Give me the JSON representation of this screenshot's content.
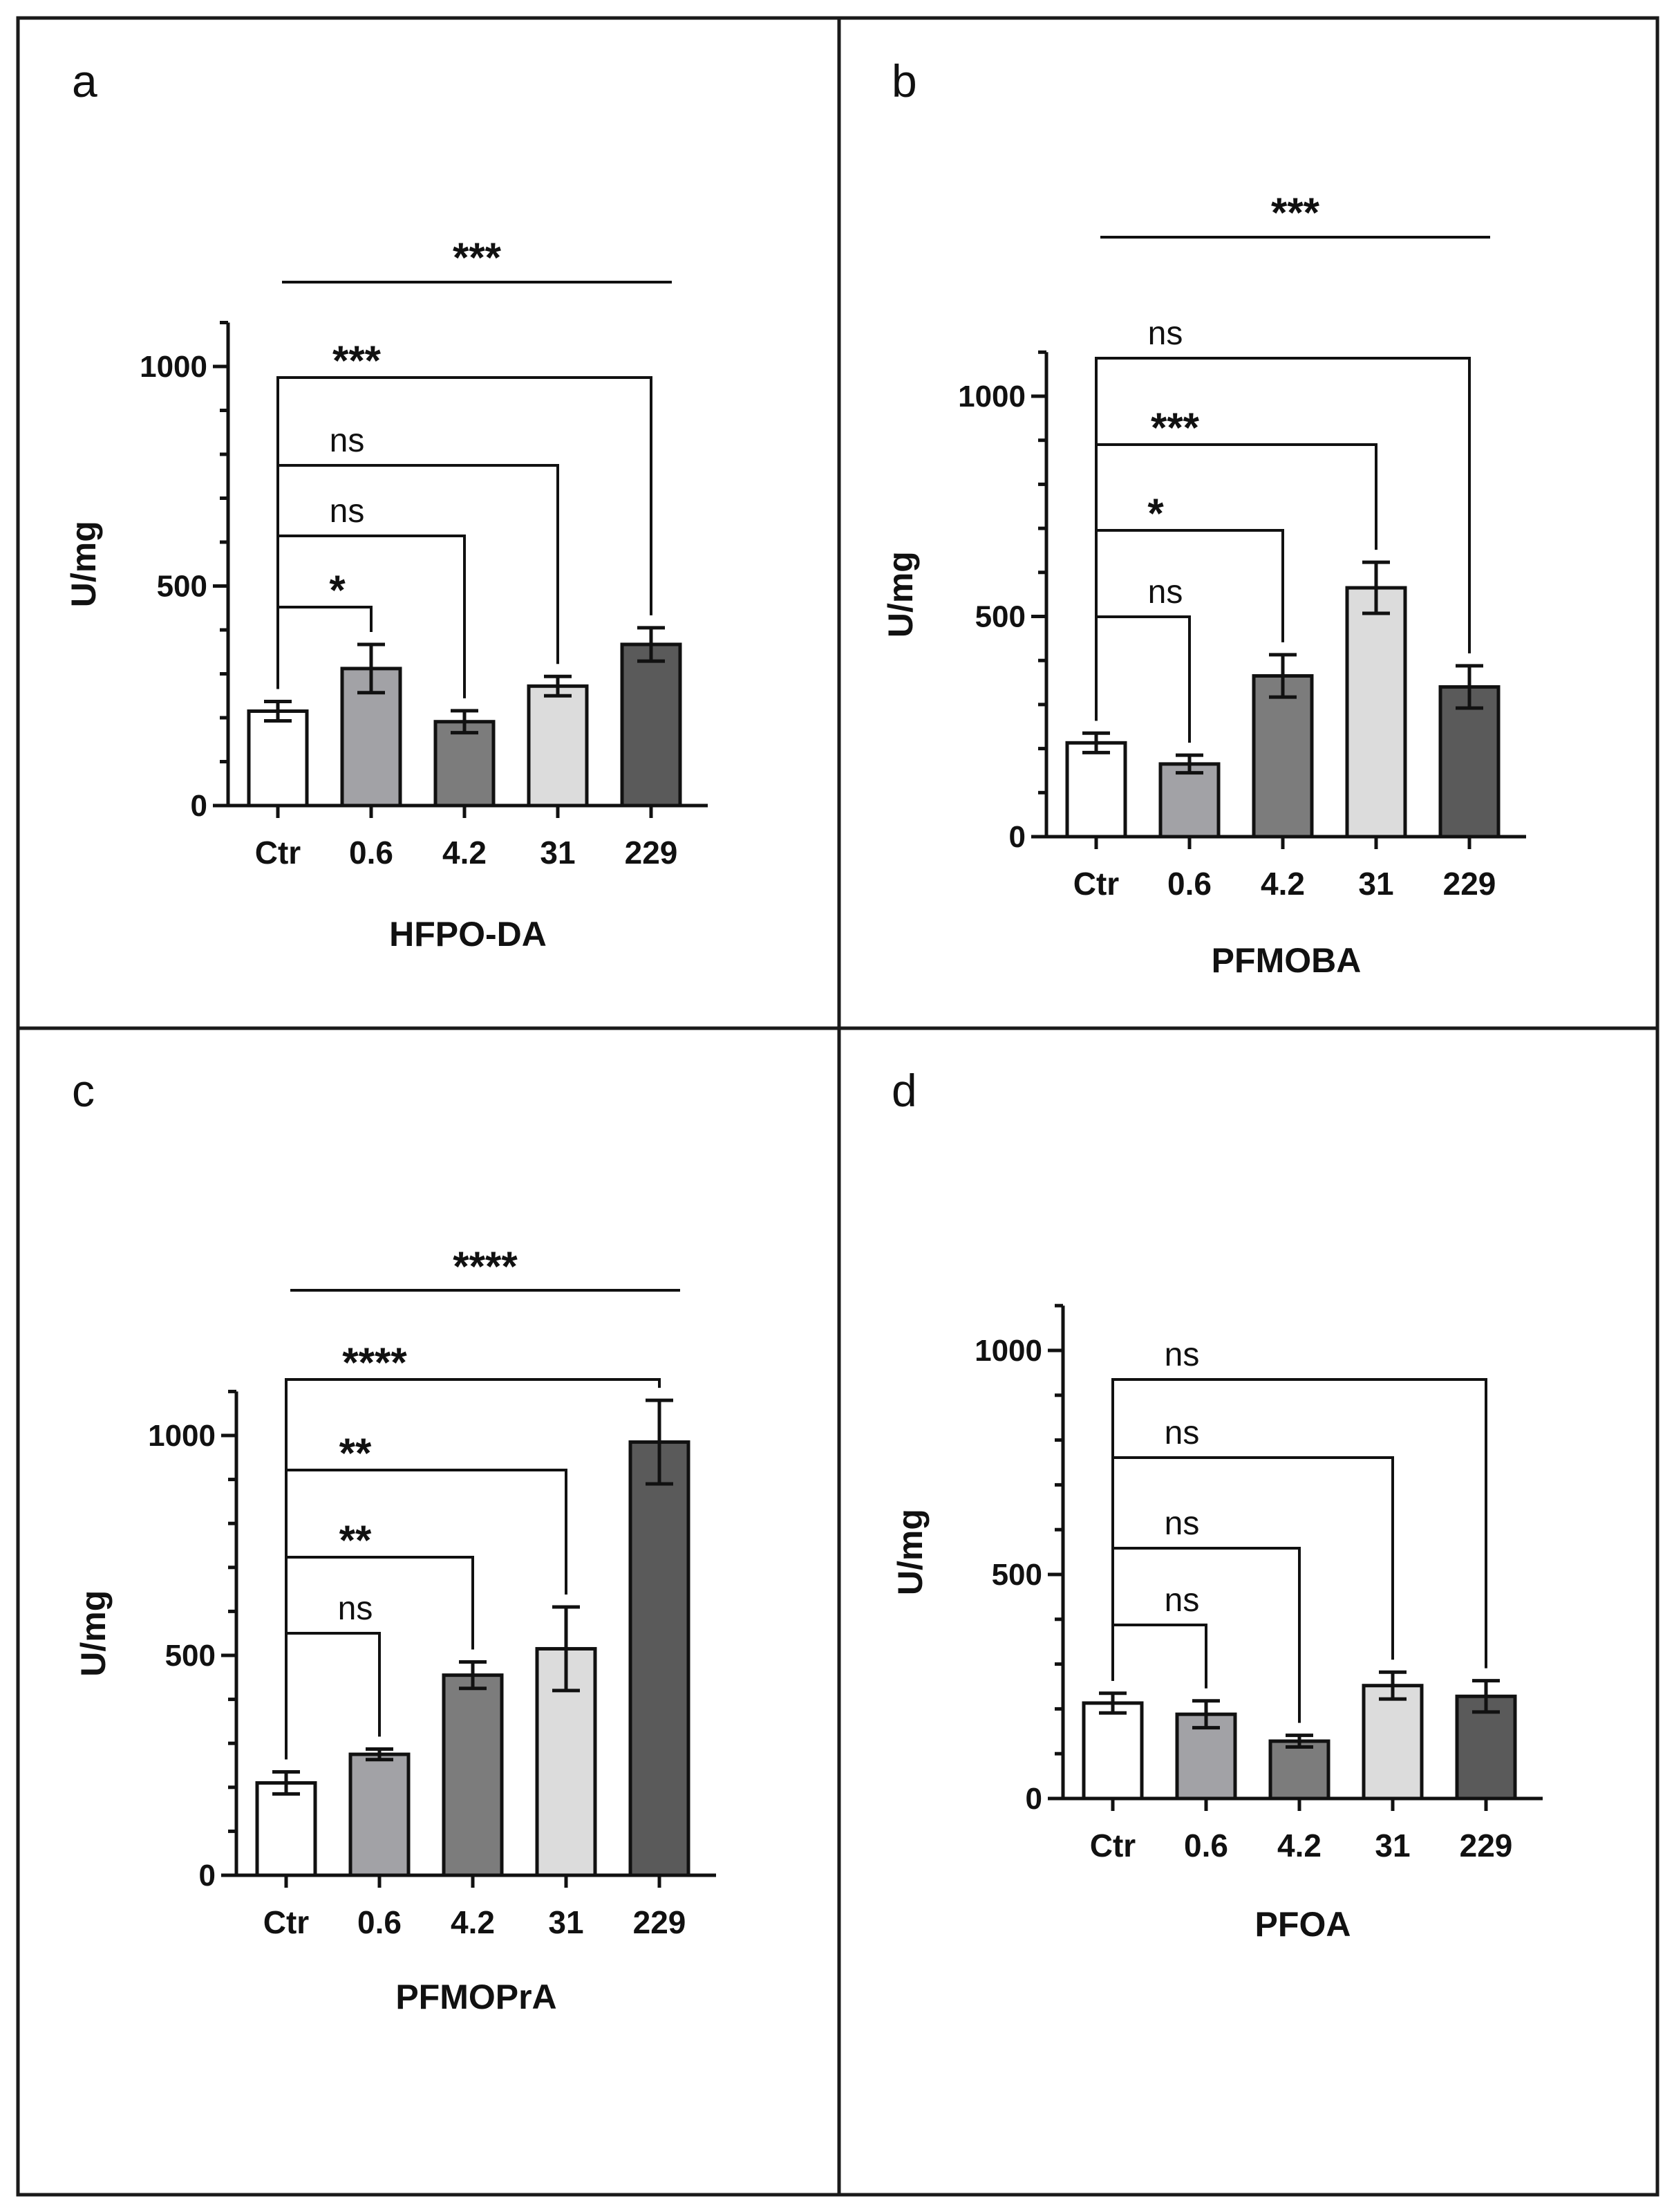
{
  "colors": {
    "Ctr": "#ffffff",
    "0.6": "#a2a2a6",
    "4.2": "#7c7c7c",
    "31": "#dcdcdc",
    "229": "#5a5a5a"
  },
  "chart_data": [
    {
      "panel": "a",
      "type": "bar",
      "categories": [
        "Ctr",
        "0.6",
        "4.2",
        "31",
        "229"
      ],
      "values": [
        215,
        312,
        191,
        272,
        367
      ],
      "errors": [
        22,
        55,
        25,
        22,
        38
      ],
      "xlabel": "HFPO-DA",
      "ylabel": "U/mg",
      "yticks": [
        0,
        500,
        1000
      ],
      "ylim": [
        0,
        1100
      ],
      "comparisons": [
        {
          "from": 0,
          "to": 1,
          "label": "*"
        },
        {
          "from": 0,
          "to": 2,
          "label": "ns"
        },
        {
          "from": 0,
          "to": 3,
          "label": "ns"
        },
        {
          "from": 0,
          "to": 4,
          "label": "***"
        }
      ],
      "trend": {
        "label": "***"
      }
    },
    {
      "panel": "b",
      "type": "bar",
      "categories": [
        "Ctr",
        "0.6",
        "4.2",
        "31",
        "229"
      ],
      "values": [
        213,
        165,
        365,
        565,
        340
      ],
      "errors": [
        22,
        20,
        48,
        58,
        48
      ],
      "xlabel": "PFMOBA",
      "ylabel": "U/mg",
      "yticks": [
        0,
        500,
        1000
      ],
      "ylim": [
        0,
        1100
      ],
      "comparisons": [
        {
          "from": 0,
          "to": 1,
          "label": "ns"
        },
        {
          "from": 0,
          "to": 2,
          "label": "*"
        },
        {
          "from": 0,
          "to": 3,
          "label": "***"
        },
        {
          "from": 0,
          "to": 4,
          "label": "ns"
        }
      ],
      "trend": {
        "label": "***"
      }
    },
    {
      "panel": "c",
      "type": "bar",
      "categories": [
        "Ctr",
        "0.6",
        "4.2",
        "31",
        "229"
      ],
      "values": [
        210,
        275,
        455,
        515,
        985
      ],
      "errors": [
        25,
        12,
        30,
        95,
        95
      ],
      "xlabel": "PFMOPrA",
      "ylabel": "U/mg",
      "yticks": [
        0,
        500,
        1000
      ],
      "ylim": [
        0,
        1100
      ],
      "comparisons": [
        {
          "from": 0,
          "to": 1,
          "label": "ns"
        },
        {
          "from": 0,
          "to": 2,
          "label": "**"
        },
        {
          "from": 0,
          "to": 3,
          "label": "**"
        },
        {
          "from": 0,
          "to": 4,
          "label": "****"
        }
      ],
      "trend": {
        "label": "****"
      }
    },
    {
      "panel": "d",
      "type": "bar",
      "categories": [
        "Ctr",
        "0.6",
        "4.2",
        "31",
        "229"
      ],
      "values": [
        213,
        188,
        128,
        252,
        228
      ],
      "errors": [
        22,
        30,
        13,
        30,
        35
      ],
      "xlabel": "PFOA",
      "ylabel": "U/mg",
      "yticks": [
        0,
        500,
        1000
      ],
      "ylim": [
        0,
        1100
      ],
      "comparisons": [
        {
          "from": 0,
          "to": 1,
          "label": "ns"
        },
        {
          "from": 0,
          "to": 2,
          "label": "ns"
        },
        {
          "from": 0,
          "to": 3,
          "label": "ns"
        },
        {
          "from": 0,
          "to": 4,
          "label": "ns"
        }
      ],
      "trend": null
    }
  ]
}
